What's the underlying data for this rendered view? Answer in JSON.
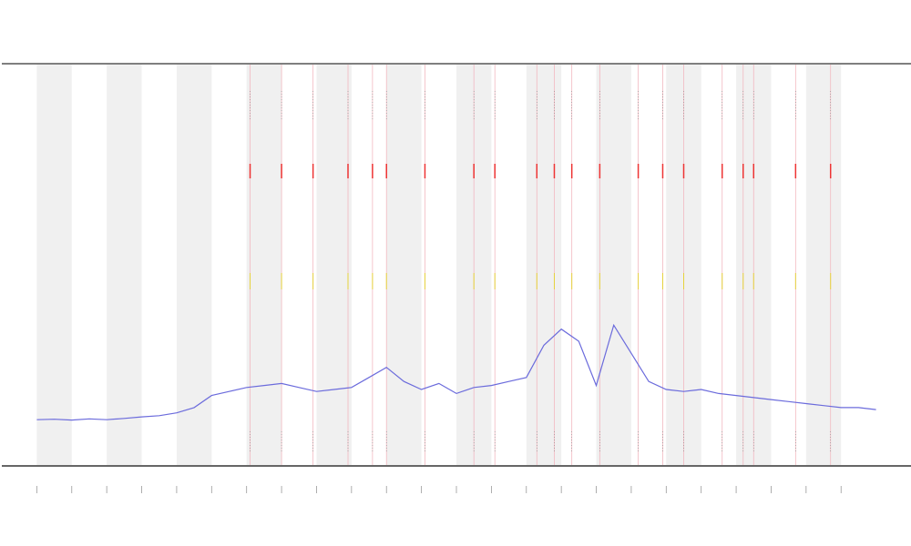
{
  "chart_data": {
    "type": "line",
    "x": [
      0,
      0.5,
      1,
      1.5,
      2,
      2.5,
      3,
      3.5,
      4,
      4.5,
      5,
      5.5,
      6,
      6.5,
      7,
      7.5,
      8,
      8.5,
      9,
      9.5,
      10,
      10.5,
      11,
      11.5,
      12,
      12.5,
      13,
      13.5,
      14,
      14.5,
      15,
      15.5,
      16,
      16.5,
      17,
      17.5,
      18,
      18.5,
      19,
      19.5,
      20,
      20.5,
      21,
      21.5,
      22,
      22.5,
      23,
      23.5,
      24
    ],
    "series": [
      {
        "color": "#6b6bdc",
        "values": [
          11.5,
          11.6,
          11.4,
          11.7,
          11.5,
          11.8,
          12.2,
          12.5,
          13.2,
          14.5,
          17.5,
          18.5,
          19.5,
          20,
          20.5,
          19.5,
          18.5,
          19,
          19.5,
          22,
          24.5,
          21,
          19,
          20.5,
          18,
          19.5,
          20,
          21,
          22,
          30,
          34,
          31,
          20,
          35,
          28,
          21,
          19,
          18.5,
          19,
          18,
          17.5,
          17,
          16.5,
          16,
          15.5,
          15,
          14.5,
          14.5,
          14
        ]
      }
    ],
    "xlim": [
      -1,
      25
    ],
    "ylim": [
      0,
      100
    ],
    "xticks": [
      0,
      1,
      2,
      3,
      4,
      5,
      6,
      7,
      8,
      9,
      10,
      11,
      12,
      13,
      14,
      15,
      16,
      17,
      18,
      19,
      20,
      21,
      22,
      23
    ],
    "bands": [
      [
        0,
        1
      ],
      [
        2,
        3
      ],
      [
        4,
        5
      ],
      [
        6,
        7
      ],
      [
        8,
        9
      ],
      [
        10,
        11
      ],
      [
        12,
        13
      ],
      [
        14,
        15
      ],
      [
        16,
        17
      ],
      [
        18,
        19
      ],
      [
        20,
        21
      ],
      [
        22,
        23
      ]
    ],
    "events": [
      6.1,
      7.0,
      7.9,
      8.9,
      9.6,
      10.0,
      11.1,
      12.5,
      13.1,
      14.3,
      14.8,
      15.3,
      16.1,
      17.2,
      17.9,
      18.5,
      19.6,
      20.2,
      20.5,
      21.7,
      22.7
    ]
  }
}
